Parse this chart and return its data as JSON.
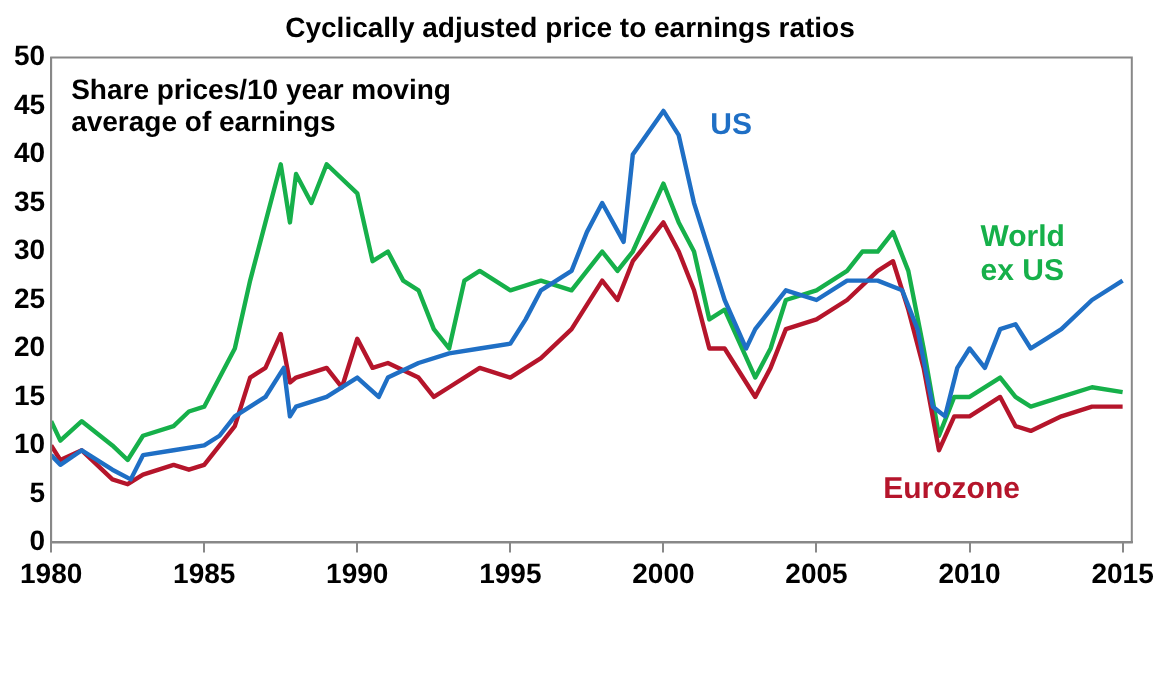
{
  "chart_data": {
    "type": "line",
    "title": "Cyclically adjusted price to earnings ratios",
    "subtitle": "Share prices/10 year moving average of earnings",
    "xlim": [
      1980,
      2015.3
    ],
    "xticks": [
      1980,
      1985,
      1990,
      1995,
      2000,
      2005,
      2010,
      2015
    ],
    "ylim": [
      0,
      50
    ],
    "yticks": [
      0,
      5,
      10,
      15,
      20,
      25,
      30,
      35,
      40,
      45,
      50
    ],
    "grid": false,
    "legend": false,
    "marker": "none",
    "line_style": "solid",
    "series": [
      {
        "name": "World ex US",
        "color": "#16b04a",
        "x": [
          1980,
          1980.3,
          1981,
          1982,
          1982.5,
          1983,
          1984,
          1984.5,
          1985,
          1986,
          1986.5,
          1987,
          1987.5,
          1987.8,
          1988,
          1988.5,
          1989,
          1990,
          1990.5,
          1991,
          1991.5,
          1992,
          1992.5,
          1993,
          1993.5,
          1994,
          1995,
          1996,
          1997,
          1998,
          1998.5,
          1999,
          2000,
          2000.5,
          2001,
          2001.5,
          2002,
          2003,
          2003.5,
          2004,
          2005,
          2006,
          2006.5,
          2007,
          2007.5,
          2008,
          2008.5,
          2009,
          2009.5,
          2010,
          2011,
          2011.5,
          2012,
          2013,
          2014,
          2015
        ],
        "values": [
          12.5,
          10.5,
          12.5,
          10,
          8.5,
          11,
          12,
          13.5,
          14,
          20,
          27,
          33,
          39,
          33,
          38,
          35,
          39,
          36,
          29,
          30,
          27,
          26,
          22,
          20,
          27,
          28,
          26,
          27,
          26,
          30,
          28,
          30,
          37,
          33,
          30,
          23,
          24,
          17,
          20,
          25,
          26,
          28,
          30,
          30,
          32,
          28,
          20,
          11,
          15,
          15,
          17,
          15,
          14,
          15,
          16,
          15.5
        ]
      },
      {
        "name": "Eurozone",
        "color": "#b5152b",
        "x": [
          1980,
          1980.3,
          1981,
          1982,
          1982.5,
          1983,
          1984,
          1984.5,
          1985,
          1986,
          1986.5,
          1987,
          1987.5,
          1987.8,
          1988,
          1989,
          1989.5,
          1990,
          1990.5,
          1991,
          1992,
          1992.5,
          1993,
          1994,
          1995,
          1996,
          1997,
          1998,
          1998.5,
          1999,
          2000,
          2000.5,
          2001,
          2001.5,
          2002,
          2003,
          2003.5,
          2004,
          2005,
          2006,
          2007,
          2007.5,
          2008,
          2008.5,
          2009,
          2009.5,
          2010,
          2011,
          2011.5,
          2012,
          2013,
          2014,
          2015
        ],
        "values": [
          10,
          8.5,
          9.5,
          6.5,
          6,
          7,
          8,
          7.5,
          8,
          12,
          17,
          18,
          21.5,
          16.5,
          17,
          18,
          16,
          21,
          18,
          18.5,
          17,
          15,
          16,
          18,
          17,
          19,
          22,
          27,
          25,
          29,
          33,
          30,
          26,
          20,
          20,
          15,
          18,
          22,
          23,
          25,
          28,
          29,
          24,
          18,
          9.5,
          13,
          13,
          15,
          12,
          11.5,
          13,
          14,
          14
        ]
      },
      {
        "name": "US",
        "color": "#1f6fc5",
        "x": [
          1980,
          1980.3,
          1981,
          1982,
          1982.6,
          1983,
          1984,
          1985,
          1985.5,
          1986,
          1987,
          1987.6,
          1987.8,
          1988,
          1989,
          1990,
          1990.7,
          1991,
          1992,
          1993,
          1994,
          1995,
          1995.5,
          1996,
          1997,
          1997.5,
          1998,
          1998.7,
          1999,
          2000,
          2000.5,
          2001,
          2001.5,
          2002,
          2002.7,
          2003,
          2004,
          2005,
          2006,
          2007,
          2007.8,
          2008.3,
          2008.8,
          2009.2,
          2009.6,
          2010,
          2010.5,
          2011,
          2011.5,
          2012,
          2012.5,
          2013,
          2014,
          2015
        ],
        "values": [
          9,
          8,
          9.5,
          7.5,
          6.5,
          9,
          9.5,
          10,
          11,
          13,
          15,
          18,
          13,
          14,
          15,
          17,
          15,
          17,
          18.5,
          19.5,
          20,
          20.5,
          23,
          26,
          28,
          32,
          35,
          31,
          40,
          44.5,
          42,
          35,
          30,
          25,
          20,
          22,
          26,
          25,
          27,
          27,
          26,
          22,
          14,
          13,
          18,
          20,
          18,
          22,
          22.5,
          20,
          21,
          22,
          25,
          27
        ]
      }
    ]
  }
}
